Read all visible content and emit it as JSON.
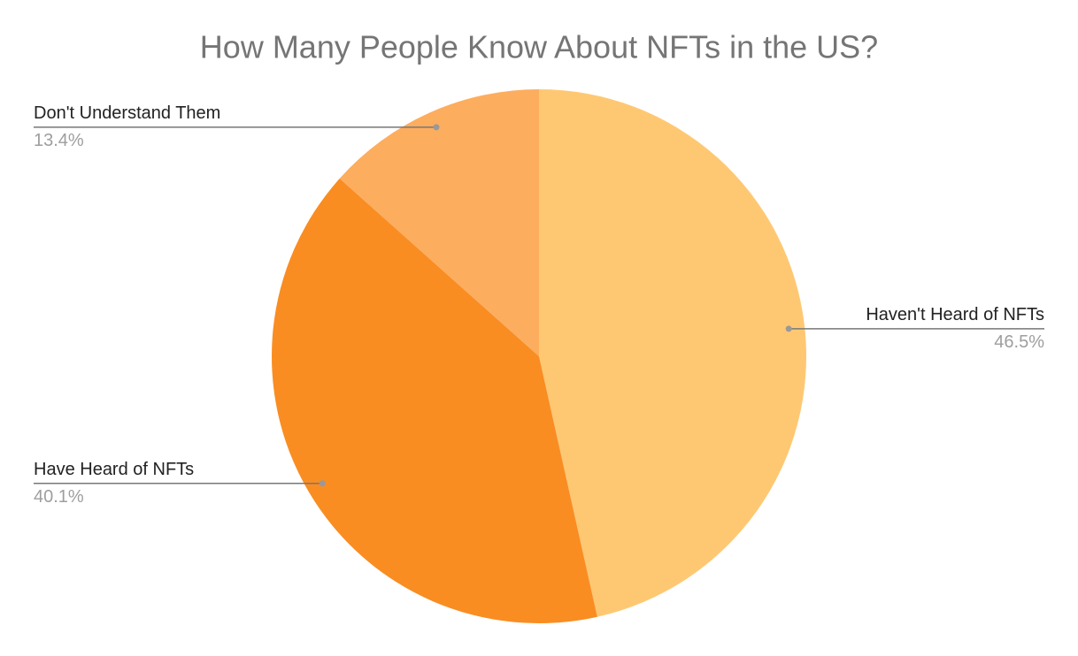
{
  "chart_data": {
    "type": "pie",
    "title": "How Many People Know About NFTs in the US?",
    "categories": [
      "Haven't Heard of NFTs",
      "Have Heard of NFTs",
      "Don't Understand Them"
    ],
    "values": [
      46.5,
      40.1,
      13.4
    ],
    "value_labels": [
      "46.5%",
      "40.1%",
      "13.4%"
    ],
    "colors": [
      "#fec873",
      "#f98d22",
      "#fdad5e"
    ]
  }
}
